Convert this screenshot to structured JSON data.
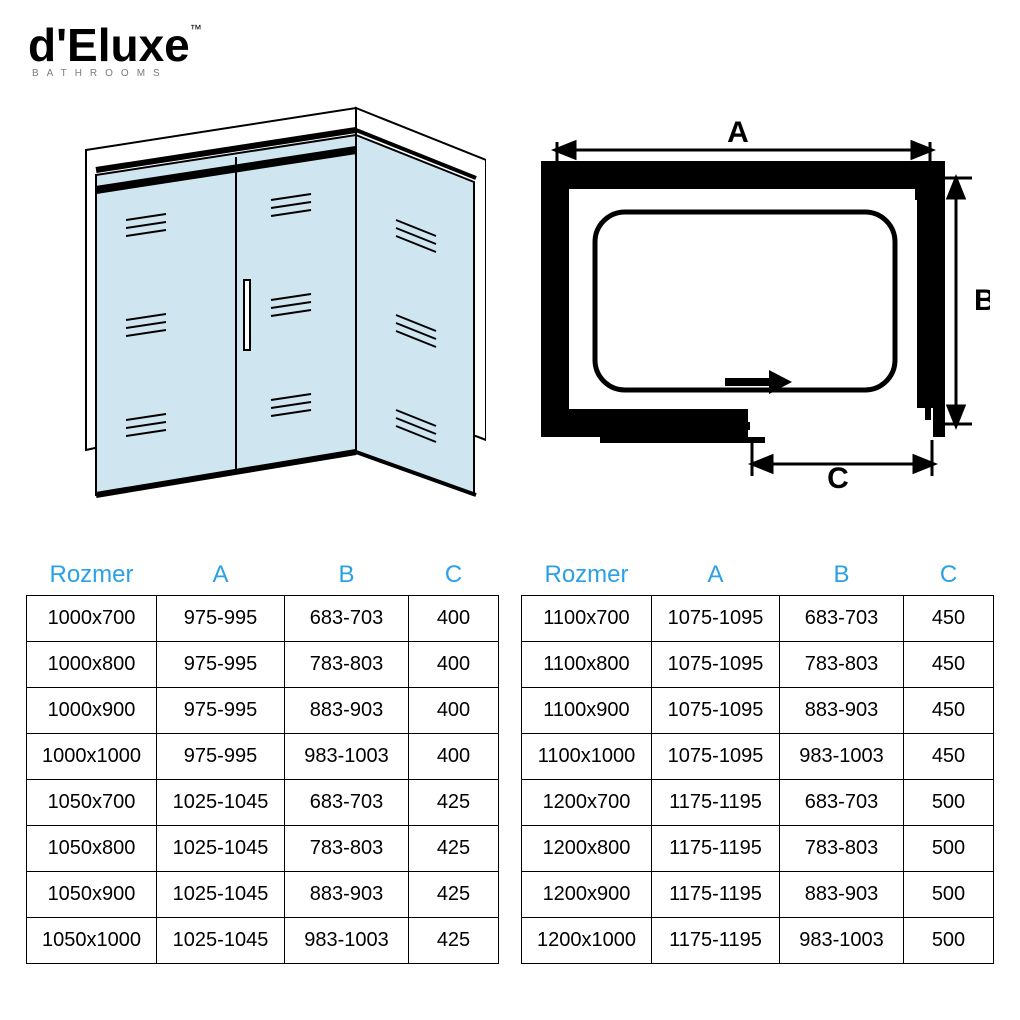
{
  "brand": {
    "name": "d'Eluxe",
    "tm": "™",
    "sub": "BATHROOMS"
  },
  "diagram_colors": {
    "glass": "#cfe6f0",
    "line": "#000000",
    "bg": "#ffffff"
  },
  "labels": {
    "A": "A",
    "B": "B",
    "C": "C"
  },
  "tables": {
    "header_color": "#2aa0e6",
    "headers": [
      "Rozmer",
      "A",
      "B",
      "C"
    ],
    "left": [
      [
        "1000x700",
        "975-995",
        "683-703",
        "400"
      ],
      [
        "1000x800",
        "975-995",
        "783-803",
        "400"
      ],
      [
        "1000x900",
        "975-995",
        "883-903",
        "400"
      ],
      [
        "1000x1000",
        "975-995",
        "983-1003",
        "400"
      ],
      [
        "1050x700",
        "1025-1045",
        "683-703",
        "425"
      ],
      [
        "1050x800",
        "1025-1045",
        "783-803",
        "425"
      ],
      [
        "1050x900",
        "1025-1045",
        "883-903",
        "425"
      ],
      [
        "1050x1000",
        "1025-1045",
        "983-1003",
        "425"
      ]
    ],
    "right": [
      [
        "1100x700",
        "1075-1095",
        "683-703",
        "450"
      ],
      [
        "1100x800",
        "1075-1095",
        "783-803",
        "450"
      ],
      [
        "1100x900",
        "1075-1095",
        "883-903",
        "450"
      ],
      [
        "1100x1000",
        "1075-1095",
        "983-1003",
        "450"
      ],
      [
        "1200x700",
        "1175-1195",
        "683-703",
        "500"
      ],
      [
        "1200x800",
        "1175-1195",
        "783-803",
        "500"
      ],
      [
        "1200x900",
        "1175-1195",
        "883-903",
        "500"
      ],
      [
        "1200x1000",
        "1175-1195",
        "983-1003",
        "500"
      ]
    ]
  }
}
